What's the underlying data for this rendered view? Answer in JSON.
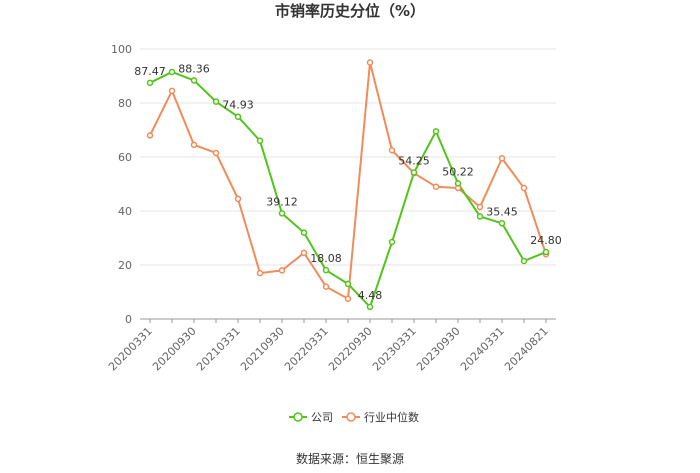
{
  "chart_data": {
    "type": "line",
    "title": "市销率历史分位（%）",
    "source": "数据来源：恒生聚源",
    "ylim": [
      0,
      100
    ],
    "yticks": [
      0,
      20,
      40,
      60,
      80,
      100
    ],
    "grid": true,
    "legend_position": "bottom",
    "x_tick_labels": [
      "20200331",
      "20200930",
      "20210331",
      "20210930",
      "20220331",
      "20220930",
      "20230331",
      "20230930",
      "20240331",
      "20240821"
    ],
    "x": [
      "20200331",
      "20200630",
      "20200930",
      "20201231",
      "20210331",
      "20210630",
      "20210930",
      "20211231",
      "20220331",
      "20220630",
      "20220930",
      "20221231",
      "20230331",
      "20230630",
      "20230930",
      "20231231",
      "20240331",
      "20240630",
      "20240821"
    ],
    "series": [
      {
        "name": "公司",
        "color": "#52c41a",
        "values": [
          87.47,
          91.5,
          88.36,
          80.5,
          74.93,
          66.0,
          39.12,
          32.0,
          18.08,
          13.0,
          4.48,
          28.5,
          54.25,
          69.5,
          50.22,
          38.0,
          35.45,
          21.5,
          24.8
        ],
        "labels": {
          "0": "87.47",
          "2": "88.36",
          "4": "74.93",
          "6": "39.12",
          "8": "18.08",
          "10": "4.48",
          "12": "54.25",
          "14": "50.22",
          "16": "35.45",
          "18": "24.80"
        }
      },
      {
        "name": "行业中位数",
        "color": "#f08c5a",
        "values": [
          68.0,
          84.5,
          64.5,
          61.5,
          44.5,
          17.0,
          18.0,
          24.5,
          12.0,
          7.5,
          95.0,
          62.5,
          54.0,
          49.0,
          48.5,
          41.5,
          59.5,
          48.5,
          24.0
        ]
      }
    ]
  }
}
